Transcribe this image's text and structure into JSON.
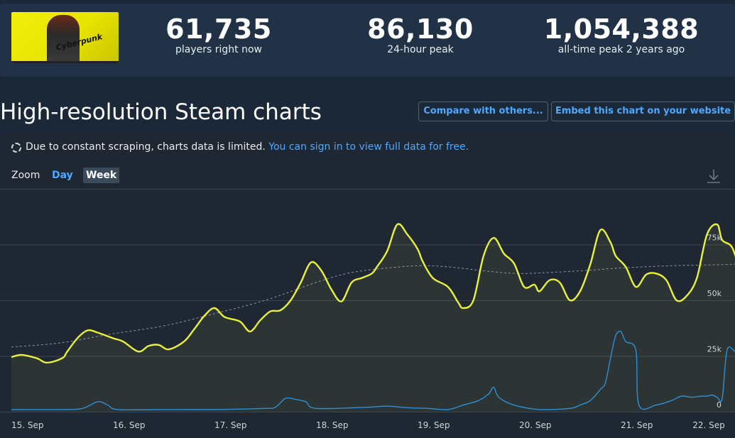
{
  "stats": [
    {
      "value": "61,735",
      "label": "players right now"
    },
    {
      "value": "86,130",
      "label": "24-hour peak"
    },
    {
      "value": "1,054,388",
      "label": "all-time peak 2 years ago"
    }
  ],
  "game": {
    "cover_logo": "Cyberpunk"
  },
  "page": {
    "title": "High-resolution Steam charts"
  },
  "buttons": {
    "compare": "Compare with others...",
    "embed": "Embed this chart on your website"
  },
  "notice": {
    "text": "Due to constant scraping, charts data is limited.",
    "link": "You can sign in to view full data for free."
  },
  "zoom": {
    "label": "Zoom",
    "options": [
      "Day",
      "Week"
    ],
    "selected": "Week"
  },
  "icons": {
    "download": "download-icon",
    "notice": "dashed-circle-icon"
  },
  "colors": {
    "players": "#e8f23c",
    "twitch": "#2d8fd8",
    "average": "#8a96a3",
    "accent": "#4ea8ff"
  },
  "chart_data": {
    "type": "line",
    "x_axis": {
      "ticks": [
        "15. Sep",
        "16. Sep",
        "17. Sep",
        "18. Sep",
        "19. Sep",
        "20. Sep",
        "21. Sep",
        "22. Sep"
      ],
      "range": [
        0,
        7
      ]
    },
    "y_axis": {
      "ticks": [
        "0",
        "25k",
        "50k",
        "75k"
      ],
      "range": [
        0,
        100000
      ]
    },
    "grid": true,
    "series": [
      {
        "key": "players",
        "points": [
          [
            0,
            24500
          ],
          [
            0.1,
            25500
          ],
          [
            0.25,
            24000
          ],
          [
            0.35,
            22000
          ],
          [
            0.5,
            24000
          ],
          [
            0.55,
            27000
          ],
          [
            0.65,
            33000
          ],
          [
            0.75,
            36500
          ],
          [
            0.85,
            35500
          ],
          [
            1.0,
            33000
          ],
          [
            1.1,
            31500
          ],
          [
            1.25,
            27000
          ],
          [
            1.35,
            29500
          ],
          [
            1.45,
            30000
          ],
          [
            1.55,
            28000
          ],
          [
            1.7,
            31500
          ],
          [
            1.8,
            37000
          ],
          [
            1.9,
            43000
          ],
          [
            2.0,
            46500
          ],
          [
            2.1,
            42500
          ],
          [
            2.25,
            40500
          ],
          [
            2.35,
            36000
          ],
          [
            2.45,
            41000
          ],
          [
            2.55,
            45000
          ],
          [
            2.65,
            45500
          ],
          [
            2.75,
            50000
          ],
          [
            2.85,
            58000
          ],
          [
            2.95,
            67000
          ],
          [
            3.05,
            63500
          ],
          [
            3.15,
            55000
          ],
          [
            3.25,
            49500
          ],
          [
            3.35,
            58000
          ],
          [
            3.45,
            60000
          ],
          [
            3.55,
            62000
          ],
          [
            3.6,
            65000
          ],
          [
            3.7,
            72000
          ],
          [
            3.8,
            84000
          ],
          [
            3.9,
            79500
          ],
          [
            4.0,
            73000
          ],
          [
            4.05,
            67500
          ],
          [
            4.15,
            60000
          ],
          [
            4.3,
            56000
          ],
          [
            4.4,
            49000
          ],
          [
            4.45,
            46500
          ],
          [
            4.55,
            50000
          ],
          [
            4.65,
            70000
          ],
          [
            4.75,
            78000
          ],
          [
            4.85,
            71000
          ],
          [
            4.95,
            66500
          ],
          [
            5.05,
            56000
          ],
          [
            5.15,
            57000
          ],
          [
            5.2,
            54000
          ],
          [
            5.3,
            59000
          ],
          [
            5.4,
            58000
          ],
          [
            5.5,
            50000
          ],
          [
            5.6,
            54000
          ],
          [
            5.7,
            66000
          ],
          [
            5.8,
            81500
          ],
          [
            5.9,
            76000
          ],
          [
            5.95,
            70000
          ],
          [
            6.05,
            65000
          ],
          [
            6.15,
            56000
          ],
          [
            6.25,
            61500
          ],
          [
            6.35,
            62000
          ],
          [
            6.45,
            59000
          ],
          [
            6.55,
            50000
          ],
          [
            6.65,
            52000
          ],
          [
            6.75,
            60000
          ],
          [
            6.85,
            79500
          ],
          [
            6.95,
            84000
          ],
          [
            7.0,
            77000
          ],
          [
            7.1,
            73500
          ],
          [
            7.2,
            60000
          ],
          [
            7.25,
            60500
          ]
        ]
      },
      {
        "key": "average",
        "points": [
          [
            0,
            29000
          ],
          [
            0.5,
            31000
          ],
          [
            1.0,
            35000
          ],
          [
            1.5,
            38500
          ],
          [
            2.0,
            44000
          ],
          [
            2.5,
            50000
          ],
          [
            3.0,
            58000
          ],
          [
            3.3,
            62000
          ],
          [
            3.6,
            64000
          ],
          [
            4.0,
            65500
          ],
          [
            4.3,
            65000
          ],
          [
            4.7,
            63000
          ],
          [
            5.0,
            62000
          ],
          [
            5.3,
            62500
          ],
          [
            5.7,
            63500
          ],
          [
            6.0,
            64500
          ],
          [
            6.5,
            65500
          ],
          [
            7.0,
            66000
          ],
          [
            7.25,
            66500
          ]
        ]
      },
      {
        "key": "twitch",
        "points": [
          [
            0,
            1000
          ],
          [
            0.5,
            1000
          ],
          [
            0.7,
            1500
          ],
          [
            0.85,
            4500
          ],
          [
            0.95,
            3000
          ],
          [
            1.05,
            1000
          ],
          [
            1.5,
            1000
          ],
          [
            2.0,
            1000
          ],
          [
            2.5,
            1500
          ],
          [
            2.6,
            2000
          ],
          [
            2.7,
            6000
          ],
          [
            2.8,
            5500
          ],
          [
            2.9,
            4500
          ],
          [
            3.0,
            1500
          ],
          [
            3.5,
            2000
          ],
          [
            3.7,
            2500
          ],
          [
            3.9,
            1800
          ],
          [
            4.1,
            1500
          ],
          [
            4.3,
            1000
          ],
          [
            4.45,
            3000
          ],
          [
            4.6,
            5000
          ],
          [
            4.7,
            8000
          ],
          [
            4.75,
            11000
          ],
          [
            4.8,
            6500
          ],
          [
            4.95,
            3000
          ],
          [
            5.2,
            1000
          ],
          [
            5.5,
            1500
          ],
          [
            5.6,
            3000
          ],
          [
            5.7,
            5000
          ],
          [
            5.8,
            10000
          ],
          [
            5.85,
            13000
          ],
          [
            5.9,
            24000
          ],
          [
            5.95,
            34000
          ],
          [
            6.0,
            36000
          ],
          [
            6.05,
            31500
          ],
          [
            6.15,
            27500
          ],
          [
            6.18,
            3000
          ],
          [
            6.35,
            3000
          ],
          [
            6.5,
            5000
          ],
          [
            6.6,
            7000
          ],
          [
            6.7,
            6500
          ],
          [
            6.8,
            7000
          ],
          [
            6.85,
            7000
          ],
          [
            6.9,
            7500
          ],
          [
            6.95,
            6500
          ],
          [
            7.0,
            6000
          ],
          [
            7.05,
            28000
          ],
          [
            7.15,
            27000
          ],
          [
            7.2,
            39000
          ],
          [
            7.25,
            30000
          ]
        ]
      }
    ]
  }
}
